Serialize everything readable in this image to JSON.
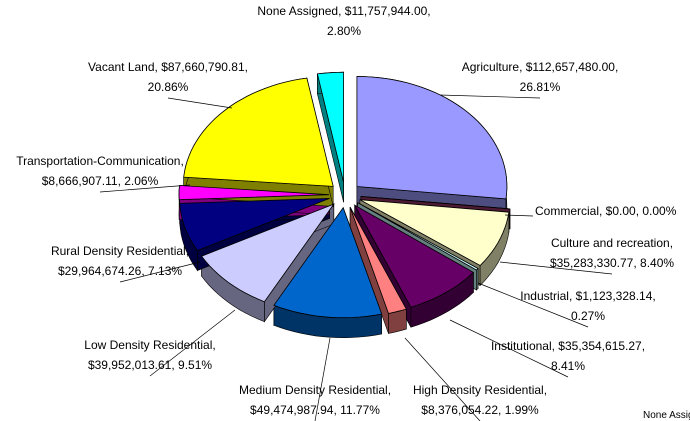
{
  "chart_data": {
    "type": "pie3d",
    "labels": [
      [
        "Agriculture, $112,657,480.00,",
        "26.81%"
      ],
      [
        "Commercial, $0.00, 0.00%"
      ],
      [
        "Culture and recreation,",
        "$35,283,330.77, 8.40%"
      ],
      [
        "Industrial, $1,123,328.14,",
        "0.27%"
      ],
      [
        "Institutional, $35,354,615.27,",
        "8.41%"
      ],
      [
        "High Density Residential,",
        "$8,376,054.22, 1.99%"
      ],
      [
        "Medium Density Residential,",
        "$49,474,987.94, 11.77%"
      ],
      [
        "Low Density Residential,",
        "$39,952,013.61, 9.51%"
      ],
      [
        "Rural Density Residential,",
        "$29,964,674.26, 7.13%"
      ],
      [
        "Transportation-Communication,",
        "$8,666,907.11, 2.06%"
      ],
      [
        "Vacant Land, $87,660,790.81,",
        "20.86%"
      ],
      [
        "None Assigned, $11,757,944.00,",
        "2.80%"
      ]
    ],
    "values": [
      112657480.0,
      0.0,
      35283330.77,
      1123328.14,
      35354615.27,
      8376054.22,
      49474987.94,
      39952013.61,
      29964674.26,
      8666907.11,
      87660790.81,
      11757944.0
    ],
    "percents": [
      26.81,
      0.0,
      8.4,
      0.27,
      8.41,
      1.99,
      11.77,
      9.51,
      7.13,
      2.06,
      20.86,
      2.8
    ],
    "colors": [
      "#9999ff",
      "#993366",
      "#ffffcc",
      "#ccffff",
      "#660066",
      "#ff8080",
      "#0066cc",
      "#ccccff",
      "#000080",
      "#ff00ff",
      "#ffff00",
      "#00ffff"
    ],
    "legend": [
      "None Assigned"
    ]
  }
}
